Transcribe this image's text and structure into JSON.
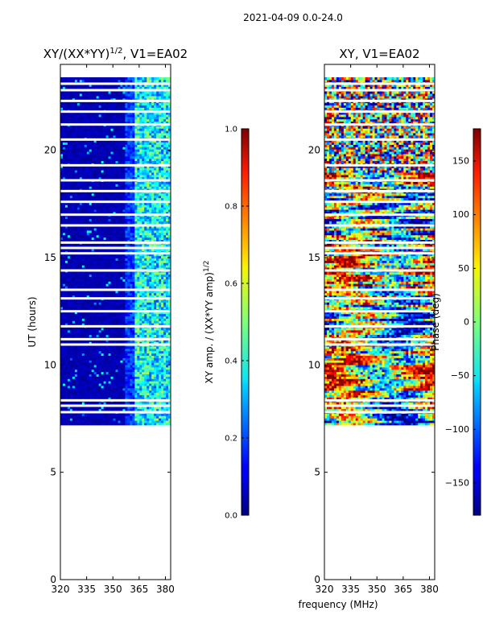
{
  "suptitle": "2021-04-09 0.0-24.0",
  "xlabel_shared": "frequency (MHz)",
  "chart_data": [
    {
      "type": "heatmap",
      "title": "XY/(XX*YY)",
      "title_sup": "1/2",
      "title_suffix": ", V1=EA02",
      "ylabel": "UT (hours)",
      "xlim": [
        320,
        383
      ],
      "ylim": [
        0,
        24
      ],
      "xticks": [
        320,
        335,
        350,
        365,
        380
      ],
      "yticks": [
        0,
        5,
        10,
        15,
        20
      ],
      "data_y_range": [
        7.2,
        23.4
      ],
      "gaps_ut": [
        7.8,
        8.1,
        8.35,
        10.95,
        11.2,
        11.8,
        12.5,
        13.1,
        13.5,
        14.4,
        15.2,
        15.45,
        15.7,
        16.5,
        17.0,
        17.6,
        18.1,
        18.6,
        19.3,
        20.5,
        21.2,
        21.8,
        22.3,
        22.8,
        23.1
      ],
      "colorbar": {
        "label": "XY amp. / (XX*YY amp)",
        "label_sup": "1/2",
        "range": [
          0.0,
          1.0
        ],
        "ticks": [
          "0.0",
          "0.2",
          "0.4",
          "0.6",
          "0.8",
          "1.0"
        ]
      }
    },
    {
      "type": "heatmap",
      "title": "XY, V1=EA02",
      "xlim": [
        320,
        383
      ],
      "ylim": [
        0,
        24
      ],
      "xticks": [
        320,
        335,
        350,
        365,
        380
      ],
      "yticks": [
        0,
        5,
        10,
        15,
        20
      ],
      "data_y_range": [
        7.2,
        23.4
      ],
      "gaps_ut": [
        7.8,
        8.1,
        8.35,
        10.95,
        11.2,
        11.8,
        12.5,
        13.1,
        13.5,
        14.4,
        15.2,
        15.45,
        15.7,
        16.5,
        17.0,
        17.6,
        18.1,
        18.6,
        19.3,
        20.5,
        21.2,
        21.8,
        22.3,
        22.8,
        23.1
      ],
      "colorbar": {
        "label": "Phase (deg)",
        "range": [
          -180,
          180
        ],
        "ticks": [
          "−150",
          "−100",
          "−50",
          "0",
          "50",
          "100",
          "150"
        ],
        "tick_values": [
          -150,
          -100,
          -50,
          0,
          50,
          100,
          150
        ]
      }
    }
  ]
}
